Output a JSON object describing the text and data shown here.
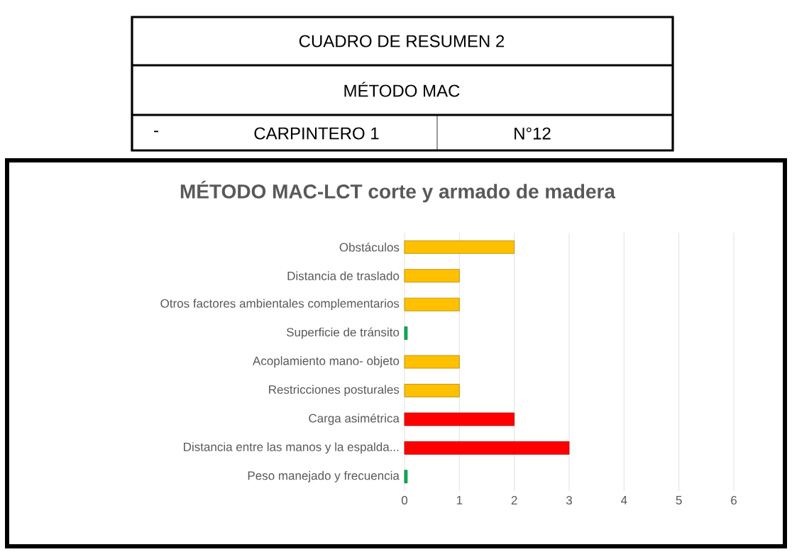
{
  "chart_data": {
    "type": "bar",
    "orientation": "horizontal",
    "title": "MÉTODO MAC-LCT corte y armado de madera",
    "annotations": [
      "CUADRO DE RESUMEN 2",
      "MÉTODO MAC",
      "-",
      "CARPINTERO 1",
      "N°12"
    ],
    "categories": [
      "Obstáculos",
      "Distancia de traslado",
      "Otros factores ambientales complementarios",
      "Superficie de tránsito",
      "Acoplamiento mano- objeto",
      "Restricciones posturales",
      "Carga asimétrica",
      "Distancia entre las manos y la espalda...",
      "Peso manejado y frecuencia"
    ],
    "values": [
      2,
      1,
      1,
      0.05,
      1,
      1,
      2,
      3,
      0.05
    ],
    "colors": [
      "#ffc000",
      "#ffc000",
      "#ffc000",
      "#00b050",
      "#ffc000",
      "#ffc000",
      "#ff0000",
      "#ff0000",
      "#00b050"
    ],
    "xlim": [
      0,
      6
    ],
    "xticks": [
      0,
      1,
      2,
      3,
      4,
      5,
      6
    ],
    "grid": "x"
  }
}
